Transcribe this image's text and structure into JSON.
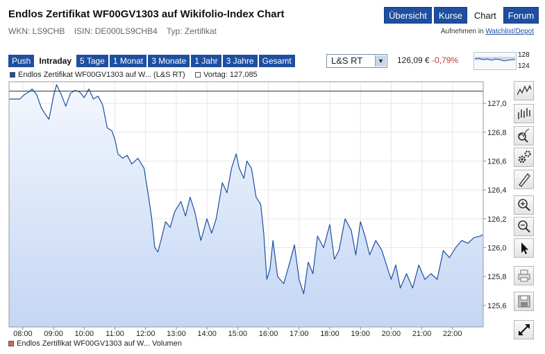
{
  "header": {
    "title": "Endlos Zertifikat WF00GV1303 auf Wikifolio-Index Chart",
    "wkn": "WKN: LS9CHB",
    "isin": "ISIN: DE000LS9CHB4",
    "typ": "Typ: Zertifikat"
  },
  "nav": {
    "tabs": [
      {
        "label": "Übersicht",
        "active": false
      },
      {
        "label": "Kurse",
        "active": false
      },
      {
        "label": "Chart",
        "active": true
      },
      {
        "label": "Forum",
        "active": false
      }
    ],
    "watch_prefix": "Aufnehmen in",
    "watch_link": "Watchlist/Depot"
  },
  "toolbar": {
    "ranges": [
      {
        "label": "Push",
        "active": false
      },
      {
        "label": "Intraday",
        "active": true
      },
      {
        "label": "5 Tage",
        "active": false
      },
      {
        "label": "1 Monat",
        "active": false
      },
      {
        "label": "3 Monate",
        "active": false
      },
      {
        "label": "1 Jahr",
        "active": false
      },
      {
        "label": "3 Jahre",
        "active": false
      },
      {
        "label": "Gesamt",
        "active": false
      }
    ],
    "exchange": "L&S RT",
    "price": "126,09 €",
    "change": "-0,79%",
    "mini_high": "128",
    "mini_low": "124"
  },
  "legend": {
    "series": "Endlos Zertifikat WF00GV1303 auf W... (L&S RT)",
    "vortag": "Vortag: 127,085",
    "volume": "Endlos Zertifikat WF00GV1303 auf W... Volumen"
  },
  "colors": {
    "line": "#1a4fa0",
    "area_top": "#f3f7fd",
    "area_bottom": "#c4d6f4",
    "vortag_line": "#333333",
    "nav_blue": "#1e4fa0",
    "negative": "#c0392b",
    "volume_swatch": "#e06060"
  },
  "tools": [
    {
      "name": "line-chart-icon"
    },
    {
      "name": "ohlc-chart-icon"
    },
    {
      "name": "indicator-search-icon"
    },
    {
      "name": "settings-gears-icon"
    },
    {
      "name": "draw-pen-icon"
    },
    {
      "name": "zoom-in-icon"
    },
    {
      "name": "zoom-out-icon"
    },
    {
      "name": "pointer-icon"
    },
    {
      "name": "print-icon"
    },
    {
      "name": "save-icon"
    },
    {
      "name": "fullscreen-icon"
    }
  ],
  "chart_data": {
    "type": "area",
    "title": "",
    "xlabel": "",
    "ylabel": "",
    "xlim": [
      7.55,
      23.0
    ],
    "ylim": [
      125.45,
      127.15
    ],
    "x_ticks": [
      "08:00",
      "09:00",
      "10:00",
      "11:00",
      "12:00",
      "13:00",
      "14:00",
      "15:00",
      "16:00",
      "17:00",
      "18:00",
      "19:00",
      "20:00",
      "21:00",
      "22:00"
    ],
    "y_ticks": [
      "127,0",
      "126,8",
      "126,6",
      "126,4",
      "126,2",
      "126,0",
      "125,8",
      "125,6"
    ],
    "reference_line": {
      "label": "Vortag: 127,085",
      "value": 127.085
    },
    "grid": true,
    "series": [
      {
        "name": "Endlos Zertifikat WF00GV1303 auf W... (L&S RT)",
        "x": [
          7.55,
          7.9,
          8.05,
          8.2,
          8.3,
          8.45,
          8.6,
          8.75,
          8.85,
          9.0,
          9.1,
          9.25,
          9.4,
          9.55,
          9.7,
          9.85,
          10.0,
          10.15,
          10.3,
          10.45,
          10.6,
          10.75,
          10.9,
          11.0,
          11.1,
          11.25,
          11.4,
          11.55,
          11.75,
          11.95,
          12.1,
          12.2,
          12.3,
          12.4,
          12.5,
          12.65,
          12.8,
          12.95,
          13.15,
          13.3,
          13.45,
          13.6,
          13.8,
          14.0,
          14.15,
          14.3,
          14.5,
          14.65,
          14.8,
          14.95,
          15.05,
          15.2,
          15.3,
          15.45,
          15.6,
          15.75,
          15.85,
          15.95,
          16.05,
          16.15,
          16.3,
          16.5,
          16.7,
          16.85,
          17.0,
          17.15,
          17.3,
          17.45,
          17.6,
          17.8,
          18.0,
          18.15,
          18.3,
          18.5,
          18.7,
          18.85,
          19.0,
          19.15,
          19.3,
          19.5,
          19.7,
          19.85,
          20.0,
          20.15,
          20.3,
          20.5,
          20.7,
          20.9,
          21.1,
          21.3,
          21.5,
          21.7,
          21.9,
          22.1,
          22.3,
          22.5,
          22.7,
          22.9,
          23.0
        ],
        "values": [
          127.03,
          127.03,
          127.06,
          127.08,
          127.1,
          127.06,
          126.97,
          126.92,
          126.89,
          127.05,
          127.13,
          127.06,
          126.98,
          127.07,
          127.09,
          127.08,
          127.04,
          127.1,
          127.03,
          127.05,
          126.99,
          126.83,
          126.81,
          126.75,
          126.65,
          126.62,
          126.64,
          126.58,
          126.62,
          126.55,
          126.35,
          126.2,
          126.0,
          125.97,
          126.05,
          126.18,
          126.14,
          126.25,
          126.32,
          126.22,
          126.35,
          126.25,
          126.05,
          126.2,
          126.1,
          126.2,
          126.45,
          126.38,
          126.55,
          126.65,
          126.55,
          126.48,
          126.6,
          126.55,
          126.35,
          126.3,
          126.1,
          125.78,
          125.85,
          126.05,
          125.8,
          125.75,
          125.9,
          126.02,
          125.78,
          125.68,
          125.9,
          125.82,
          126.08,
          126.0,
          126.16,
          125.92,
          125.98,
          126.2,
          126.12,
          125.95,
          126.18,
          126.08,
          125.95,
          126.05,
          125.98,
          125.88,
          125.78,
          125.88,
          125.72,
          125.82,
          125.72,
          125.88,
          125.78,
          125.82,
          125.78,
          125.98,
          125.93,
          126.0,
          126.05,
          126.03,
          126.07,
          126.08,
          126.09
        ]
      }
    ]
  }
}
